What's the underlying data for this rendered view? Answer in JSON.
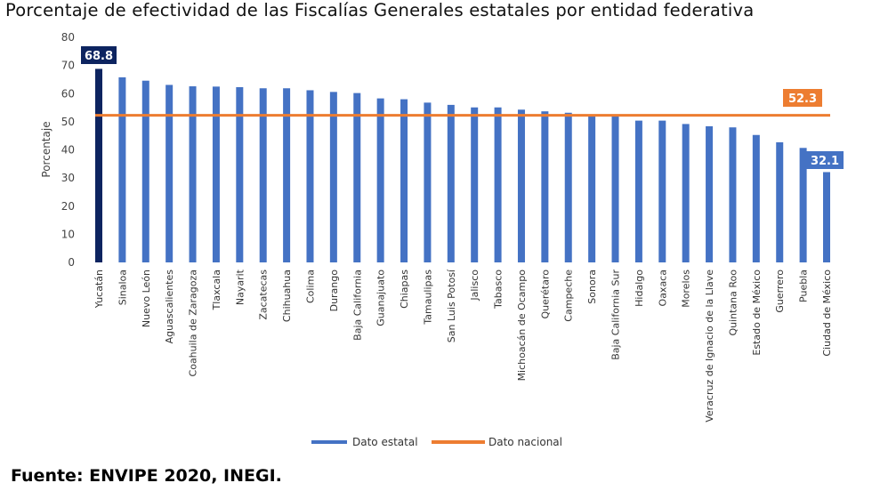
{
  "title": "Porcentaje de efectividad de las Fiscalías Generales estatales por entidad federativa",
  "source": "Fuente: ENVIPE 2020, INEGI.",
  "chart_data": {
    "type": "bar",
    "title": "Porcentaje de efectividad de las Fiscalías Generales estatales por entidad federativa",
    "ylabel": "Porcentaje",
    "xlabel": "",
    "ylim": [
      0,
      80
    ],
    "yticks": [
      0,
      10,
      20,
      30,
      40,
      50,
      60,
      70,
      80
    ],
    "grid": false,
    "legend": "bottom",
    "categories": [
      "Yucatán",
      "Sinaloa",
      "Nuevo León",
      "Aguascalientes",
      "Coahuila de Zaragoza",
      "Tlaxcala",
      "Nayarit",
      "Zacatecas",
      "Chihuahua",
      "Colima",
      "Durango",
      "Baja California",
      "Guanajuato",
      "Chiapas",
      "Tamaulipas",
      "San Luis Potosí",
      "Jalisco",
      "Tabasco",
      "Michoacán de Ocampo",
      "Querétaro",
      "Campeche",
      "Sonora",
      "Baja California Sur",
      "Hidalgo",
      "Oaxaca",
      "Morelos",
      "Veracruz de Ignacio de la Llave",
      "Quintana Roo",
      "Estado de México",
      "Guerrero",
      "Puebla",
      "Ciudad de México"
    ],
    "series": [
      {
        "name": "Dato estatal",
        "type": "bar",
        "color": "#4472c4",
        "highlight_color": "#0d2460",
        "values": [
          68.8,
          65.8,
          64.6,
          63.1,
          62.6,
          62.5,
          62.3,
          61.9,
          61.9,
          61.2,
          60.6,
          60.2,
          58.3,
          58.0,
          56.8,
          56.0,
          55.1,
          55.1,
          54.3,
          53.7,
          53.2,
          52.0,
          51.9,
          50.4,
          50.4,
          49.2,
          48.4,
          48.0,
          45.3,
          42.7,
          40.7,
          32.1
        ]
      },
      {
        "name": "Dato nacional",
        "type": "line",
        "color": "#ed7d31",
        "value": 52.3
      }
    ],
    "annotations": [
      {
        "category": "Yucatán",
        "label": "68.8",
        "color": "#0d2460"
      },
      {
        "category": "Ciudad de México",
        "label": "32.1",
        "color": "#4472c4"
      },
      {
        "series": "Dato nacional",
        "label": "52.3",
        "color": "#ed7d31"
      }
    ]
  }
}
